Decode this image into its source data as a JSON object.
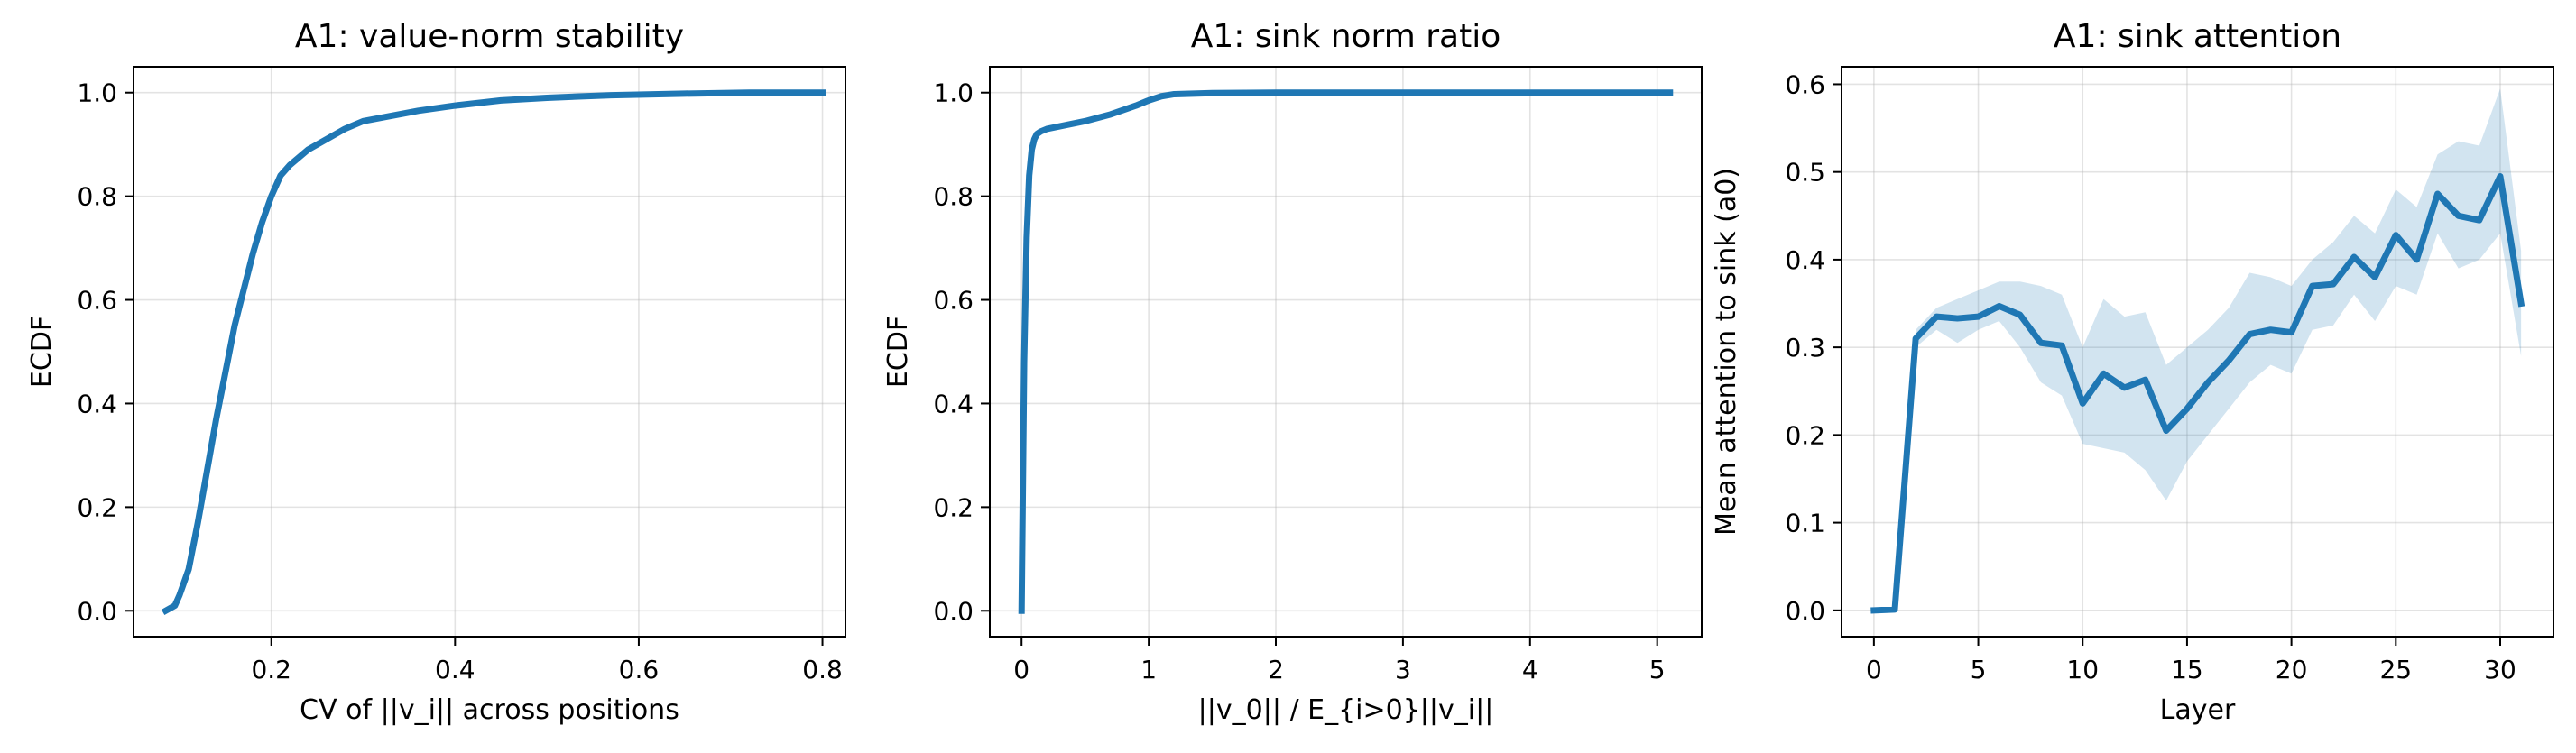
{
  "chart_data": [
    {
      "type": "line",
      "title": "A1: value-norm stability",
      "xlabel": "CV of ||v_i|| across positions",
      "ylabel": "ECDF",
      "xlim": [
        0.05,
        0.825
      ],
      "ylim": [
        -0.05,
        1.05
      ],
      "xticks": [
        0.2,
        0.4,
        0.6,
        0.8
      ],
      "yticks": [
        0.0,
        0.2,
        0.4,
        0.6,
        0.8,
        1.0
      ],
      "xtick_labels": [
        "0.2",
        "0.4",
        "0.6",
        "0.8"
      ],
      "ytick_labels": [
        "0.0",
        "0.2",
        "0.4",
        "0.6",
        "0.8",
        "1.0"
      ],
      "grid": true,
      "series": [
        {
          "color": "#1f77b4",
          "x": [
            0.085,
            0.095,
            0.1,
            0.11,
            0.12,
            0.13,
            0.14,
            0.15,
            0.16,
            0.17,
            0.18,
            0.19,
            0.2,
            0.21,
            0.22,
            0.23,
            0.24,
            0.26,
            0.28,
            0.3,
            0.33,
            0.36,
            0.4,
            0.45,
            0.5,
            0.57,
            0.65,
            0.72,
            0.8
          ],
          "y": [
            0.0,
            0.01,
            0.03,
            0.08,
            0.17,
            0.27,
            0.37,
            0.46,
            0.55,
            0.62,
            0.69,
            0.75,
            0.8,
            0.84,
            0.86,
            0.875,
            0.89,
            0.91,
            0.93,
            0.945,
            0.955,
            0.965,
            0.975,
            0.985,
            0.99,
            0.995,
            0.998,
            1.0,
            1.0
          ]
        }
      ]
    },
    {
      "type": "line",
      "title": "A1: sink norm ratio",
      "xlabel": "||v_0|| / E_{i>0}||v_i||",
      "ylabel": "ECDF",
      "xlim": [
        -0.25,
        5.35
      ],
      "ylim": [
        -0.05,
        1.05
      ],
      "xticks": [
        0,
        1,
        2,
        3,
        4,
        5
      ],
      "yticks": [
        0.0,
        0.2,
        0.4,
        0.6,
        0.8,
        1.0
      ],
      "xtick_labels": [
        "0",
        "1",
        "2",
        "3",
        "4",
        "5"
      ],
      "ytick_labels": [
        "0.0",
        "0.2",
        "0.4",
        "0.6",
        "0.8",
        "1.0"
      ],
      "grid": true,
      "series": [
        {
          "color": "#1f77b4",
          "x": [
            0.0,
            0.02,
            0.04,
            0.06,
            0.08,
            0.1,
            0.12,
            0.15,
            0.2,
            0.3,
            0.5,
            0.7,
            0.9,
            1.0,
            1.1,
            1.2,
            1.5,
            2.0,
            3.0,
            4.0,
            5.1
          ],
          "y": [
            0.0,
            0.48,
            0.72,
            0.84,
            0.89,
            0.91,
            0.92,
            0.925,
            0.93,
            0.935,
            0.945,
            0.958,
            0.975,
            0.985,
            0.993,
            0.997,
            0.999,
            1.0,
            1.0,
            1.0,
            1.0
          ]
        }
      ]
    },
    {
      "type": "line",
      "title": "A1: sink attention",
      "xlabel": "Layer",
      "ylabel": "Mean attention to sink (a0)",
      "xlim": [
        -1.55,
        32.55
      ],
      "ylim": [
        -0.03,
        0.62
      ],
      "xticks": [
        0,
        5,
        10,
        15,
        20,
        25,
        30
      ],
      "yticks": [
        0.0,
        0.1,
        0.2,
        0.3,
        0.4,
        0.5,
        0.6
      ],
      "xtick_labels": [
        "0",
        "5",
        "10",
        "15",
        "20",
        "25",
        "30"
      ],
      "ytick_labels": [
        "0.0",
        "0.1",
        "0.2",
        "0.3",
        "0.4",
        "0.5",
        "0.6"
      ],
      "grid": true,
      "series": [
        {
          "color": "#1f77b4",
          "x": [
            0,
            1,
            2,
            3,
            4,
            5,
            6,
            7,
            8,
            9,
            10,
            11,
            12,
            13,
            14,
            15,
            16,
            17,
            18,
            19,
            20,
            21,
            22,
            23,
            24,
            25,
            26,
            27,
            28,
            29,
            30,
            31
          ],
          "y": [
            0.0,
            0.001,
            0.31,
            0.335,
            0.333,
            0.335,
            0.347,
            0.337,
            0.305,
            0.302,
            0.236,
            0.27,
            0.254,
            0.263,
            0.205,
            0.23,
            0.26,
            0.285,
            0.315,
            0.32,
            0.317,
            0.37,
            0.372,
            0.403,
            0.38,
            0.428,
            0.4,
            0.475,
            0.45,
            0.445,
            0.495,
            0.35
          ],
          "band_lower": [
            0.0,
            0.0,
            0.3,
            0.32,
            0.305,
            0.32,
            0.33,
            0.3,
            0.26,
            0.245,
            0.19,
            0.185,
            0.18,
            0.16,
            0.125,
            0.17,
            0.2,
            0.23,
            0.26,
            0.28,
            0.27,
            0.32,
            0.325,
            0.36,
            0.33,
            0.37,
            0.36,
            0.43,
            0.39,
            0.4,
            0.43,
            0.29
          ],
          "band_upper": [
            0.001,
            0.002,
            0.32,
            0.345,
            0.355,
            0.365,
            0.375,
            0.375,
            0.37,
            0.36,
            0.3,
            0.355,
            0.335,
            0.34,
            0.28,
            0.3,
            0.32,
            0.345,
            0.385,
            0.38,
            0.37,
            0.4,
            0.42,
            0.45,
            0.43,
            0.48,
            0.46,
            0.52,
            0.535,
            0.53,
            0.595,
            0.41
          ]
        }
      ]
    }
  ]
}
